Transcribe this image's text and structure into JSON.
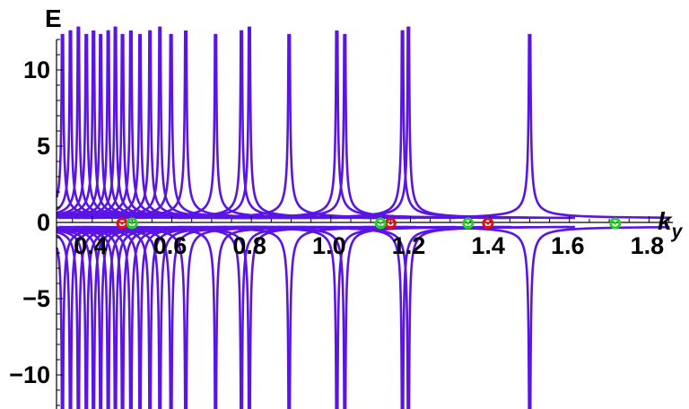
{
  "chart_data": {
    "type": "line",
    "ylabel": "E",
    "xlabel_main": "k",
    "xlabel_sub": "y",
    "xlim": [
      0.31,
      1.86
    ],
    "ylim": [
      -12,
      12
    ],
    "x_ticks": [
      {
        "value": 0.4,
        "label": "0.4"
      },
      {
        "value": 0.6,
        "label": "0.6"
      },
      {
        "value": 0.8,
        "label": "0.8"
      },
      {
        "value": 1.0,
        "label": "1.0"
      },
      {
        "value": 1.2,
        "label": "1.2"
      },
      {
        "value": 1.4,
        "label": "1.4"
      },
      {
        "value": 1.6,
        "label": "1.6"
      },
      {
        "value": 1.8,
        "label": "1.8"
      }
    ],
    "y_ticks": [
      {
        "value": 10,
        "label": "10"
      },
      {
        "value": 5,
        "label": "5"
      },
      {
        "value": 0,
        "label": "0"
      },
      {
        "value": -5,
        "label": "−5"
      },
      {
        "value": -10,
        "label": "−10"
      }
    ],
    "line_color": "#5a14e6",
    "poles": [
      0.325,
      0.345,
      0.365,
      0.385,
      0.403,
      0.421,
      0.44,
      0.458,
      0.476,
      0.497,
      0.52,
      0.545,
      0.57,
      0.598,
      0.635,
      0.71,
      0.775,
      0.795,
      0.895,
      1.015,
      1.035,
      1.18,
      1.195,
      1.5
    ],
    "red_markers": [
      0.475,
      1.15,
      1.395
    ],
    "green_markers": [
      0.5,
      1.125,
      1.345,
      1.715
    ],
    "marker_colors": {
      "red": "#e01010",
      "green": "#22d322"
    }
  }
}
